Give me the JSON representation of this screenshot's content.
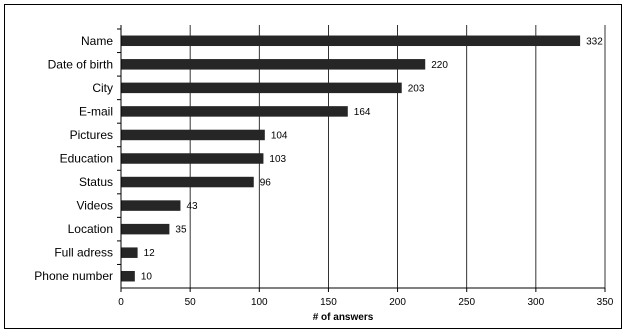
{
  "chart_data": {
    "type": "bar",
    "orientation": "horizontal",
    "categories": [
      "Name",
      "Date of birth",
      "City",
      "E-mail",
      "Pictures",
      "Education",
      "Status",
      "Videos",
      "Location",
      "Full adress",
      "Phone number"
    ],
    "values": [
      332,
      220,
      203,
      164,
      104,
      103,
      96,
      43,
      35,
      12,
      10
    ],
    "title": "",
    "xlabel": "# of answers",
    "ylabel": "",
    "xlim": [
      0,
      350
    ],
    "xticks": [
      0,
      50,
      100,
      150,
      200,
      250,
      300,
      350
    ],
    "grid": "vertical",
    "bar_color": "#262626",
    "legend": "none"
  }
}
